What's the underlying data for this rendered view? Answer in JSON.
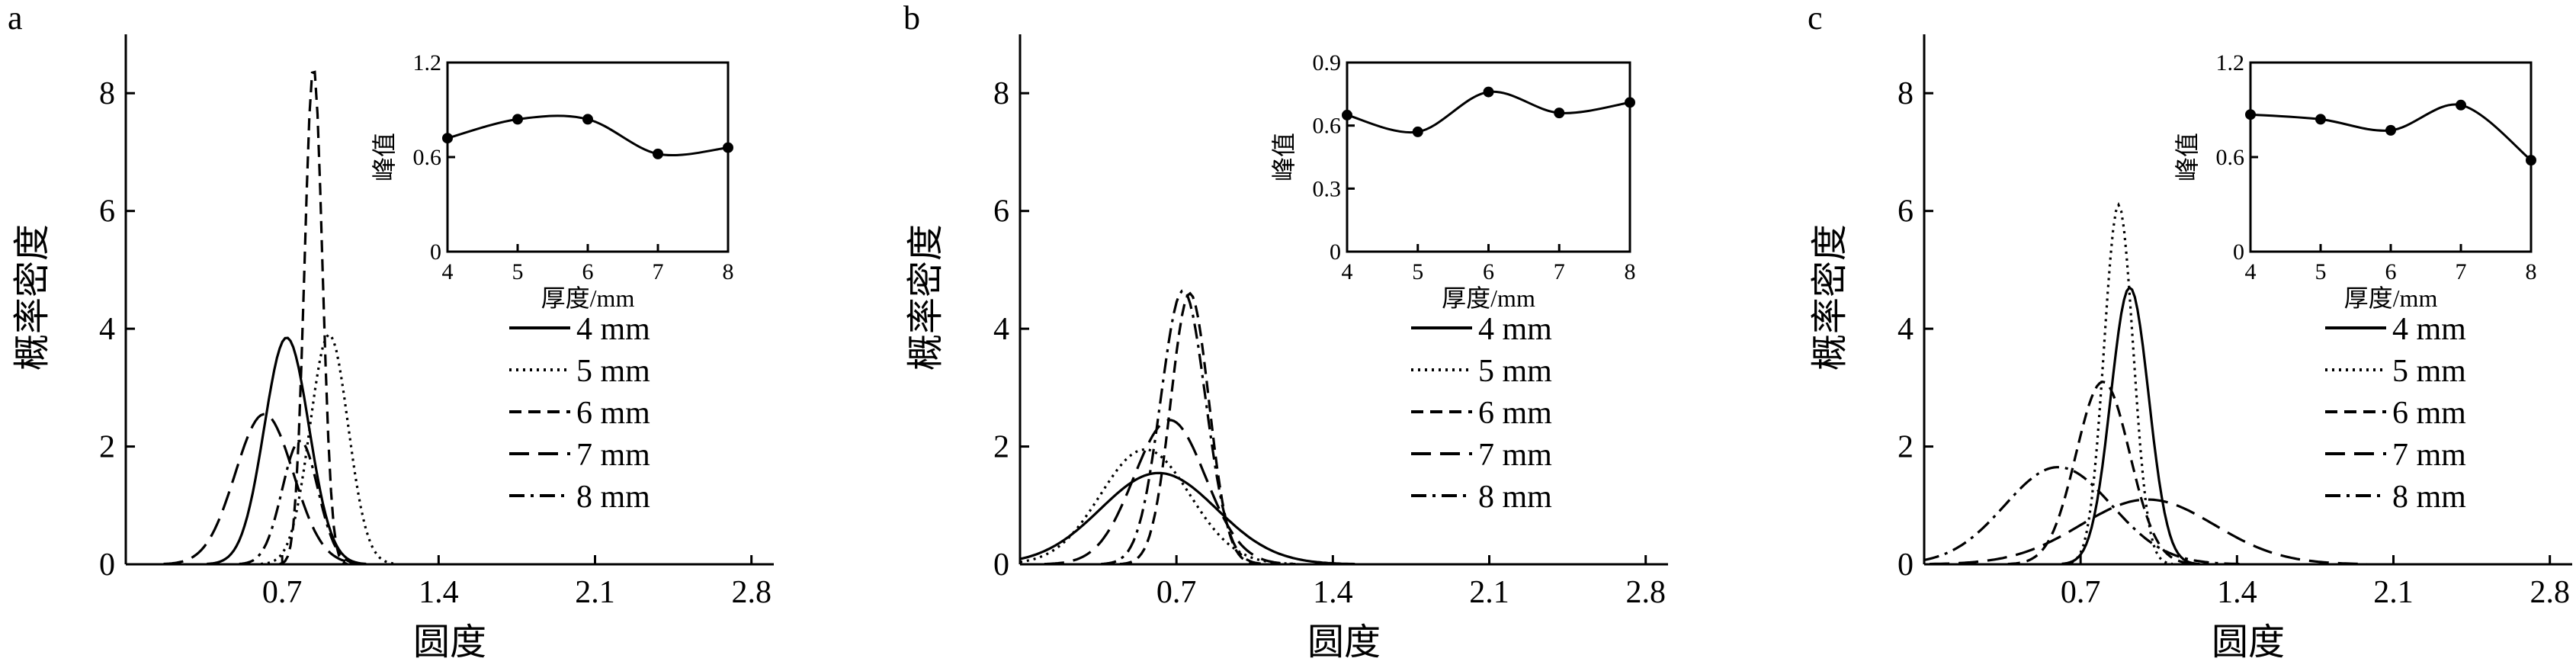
{
  "chart_data": [
    {
      "panel": "a",
      "type": "line",
      "xlabel": "圆度",
      "ylabel": "概率密度",
      "xticks": [
        "0.7",
        "1.4",
        "2.1",
        "2.8"
      ],
      "yticks": [
        "0",
        "2",
        "4",
        "6",
        "8"
      ],
      "xlim": [
        0,
        2.9
      ],
      "ylim": [
        0,
        9
      ],
      "series": [
        {
          "name": "4 mm",
          "dash": "solid",
          "mu": 0.72,
          "sigma": 0.1,
          "peak": 3.85
        },
        {
          "name": "5 mm",
          "dash": "dotted",
          "mu": 0.91,
          "sigma": 0.085,
          "peak": 3.9
        },
        {
          "name": "6 mm",
          "dash": "dashdash",
          "mu": 0.84,
          "sigma": 0.04,
          "peak": 8.45
        },
        {
          "name": "7 mm",
          "dash": "longdash",
          "mu": 0.62,
          "sigma": 0.13,
          "peak": 2.55
        },
        {
          "name": "8 mm",
          "dash": "dashdot",
          "mu": 0.78,
          "sigma": 0.08,
          "peak": 2.1
        }
      ],
      "inset": {
        "xlabel": "厚度/mm",
        "ylabel": "峰值",
        "xticks": [
          "4",
          "5",
          "6",
          "7",
          "8"
        ],
        "yticks": [
          "0",
          "0.6",
          "1.2"
        ],
        "x": [
          4,
          5,
          6,
          7,
          8
        ],
        "y": [
          0.72,
          0.84,
          0.84,
          0.62,
          0.66
        ],
        "ylim": [
          0,
          1.2
        ]
      }
    },
    {
      "panel": "b",
      "type": "line",
      "xlabel": "圆度",
      "ylabel": "概率密度",
      "xticks": [
        "0.7",
        "1.4",
        "2.1",
        "2.8"
      ],
      "yticks": [
        "0",
        "2",
        "4",
        "6",
        "8"
      ],
      "xlim": [
        0,
        2.9
      ],
      "ylim": [
        0,
        9
      ],
      "series": [
        {
          "name": "4 mm",
          "dash": "solid",
          "mu": 0.62,
          "sigma": 0.26,
          "peak": 1.55
        },
        {
          "name": "5 mm",
          "dash": "dotted",
          "mu": 0.56,
          "sigma": 0.2,
          "peak": 1.95
        },
        {
          "name": "6 mm",
          "dash": "dashdash",
          "mu": 0.76,
          "sigma": 0.085,
          "peak": 4.6
        },
        {
          "name": "7 mm",
          "dash": "longdash",
          "mu": 0.67,
          "sigma": 0.16,
          "peak": 2.45
        },
        {
          "name": "8 mm",
          "dash": "dashdot",
          "mu": 0.73,
          "sigma": 0.1,
          "peak": 4.65
        }
      ],
      "inset": {
        "xlabel": "厚度/mm",
        "ylabel": "峰值",
        "xticks": [
          "4",
          "5",
          "6",
          "7",
          "8"
        ],
        "yticks": [
          "0",
          "0.3",
          "0.6",
          "0.9"
        ],
        "x": [
          4,
          5,
          6,
          7,
          8
        ],
        "y": [
          0.65,
          0.57,
          0.76,
          0.66,
          0.71
        ],
        "ylim": [
          0,
          0.9
        ]
      }
    },
    {
      "panel": "c",
      "type": "line",
      "xlabel": "圆度",
      "ylabel": "概率密度",
      "xticks": [
        "0.7",
        "1.4",
        "2.1",
        "2.8"
      ],
      "yticks": [
        "0",
        "2",
        "4",
        "6",
        "8"
      ],
      "xlim": [
        0,
        2.9
      ],
      "ylim": [
        0,
        9
      ],
      "series": [
        {
          "name": "4 mm",
          "dash": "solid",
          "mu": 0.92,
          "sigma": 0.085,
          "peak": 4.7
        },
        {
          "name": "5 mm",
          "dash": "dotted",
          "mu": 0.87,
          "sigma": 0.065,
          "peak": 6.1
        },
        {
          "name": "6 mm",
          "dash": "dashdash",
          "mu": 0.8,
          "sigma": 0.12,
          "peak": 3.1
        },
        {
          "name": "7 mm",
          "dash": "longdash",
          "mu": 1.0,
          "sigma": 0.3,
          "peak": 1.1
        },
        {
          "name": "8 mm",
          "dash": "dashdot",
          "mu": 0.6,
          "sigma": 0.24,
          "peak": 1.65
        }
      ],
      "inset": {
        "xlabel": "厚度/mm",
        "ylabel": "峰值",
        "xticks": [
          "4",
          "5",
          "6",
          "7",
          "8"
        ],
        "yticks": [
          "0",
          "0.6",
          "1.2"
        ],
        "x": [
          4,
          5,
          6,
          7,
          8
        ],
        "y": [
          0.87,
          0.84,
          0.77,
          0.93,
          0.58
        ],
        "ylim": [
          0,
          1.2
        ]
      }
    }
  ]
}
